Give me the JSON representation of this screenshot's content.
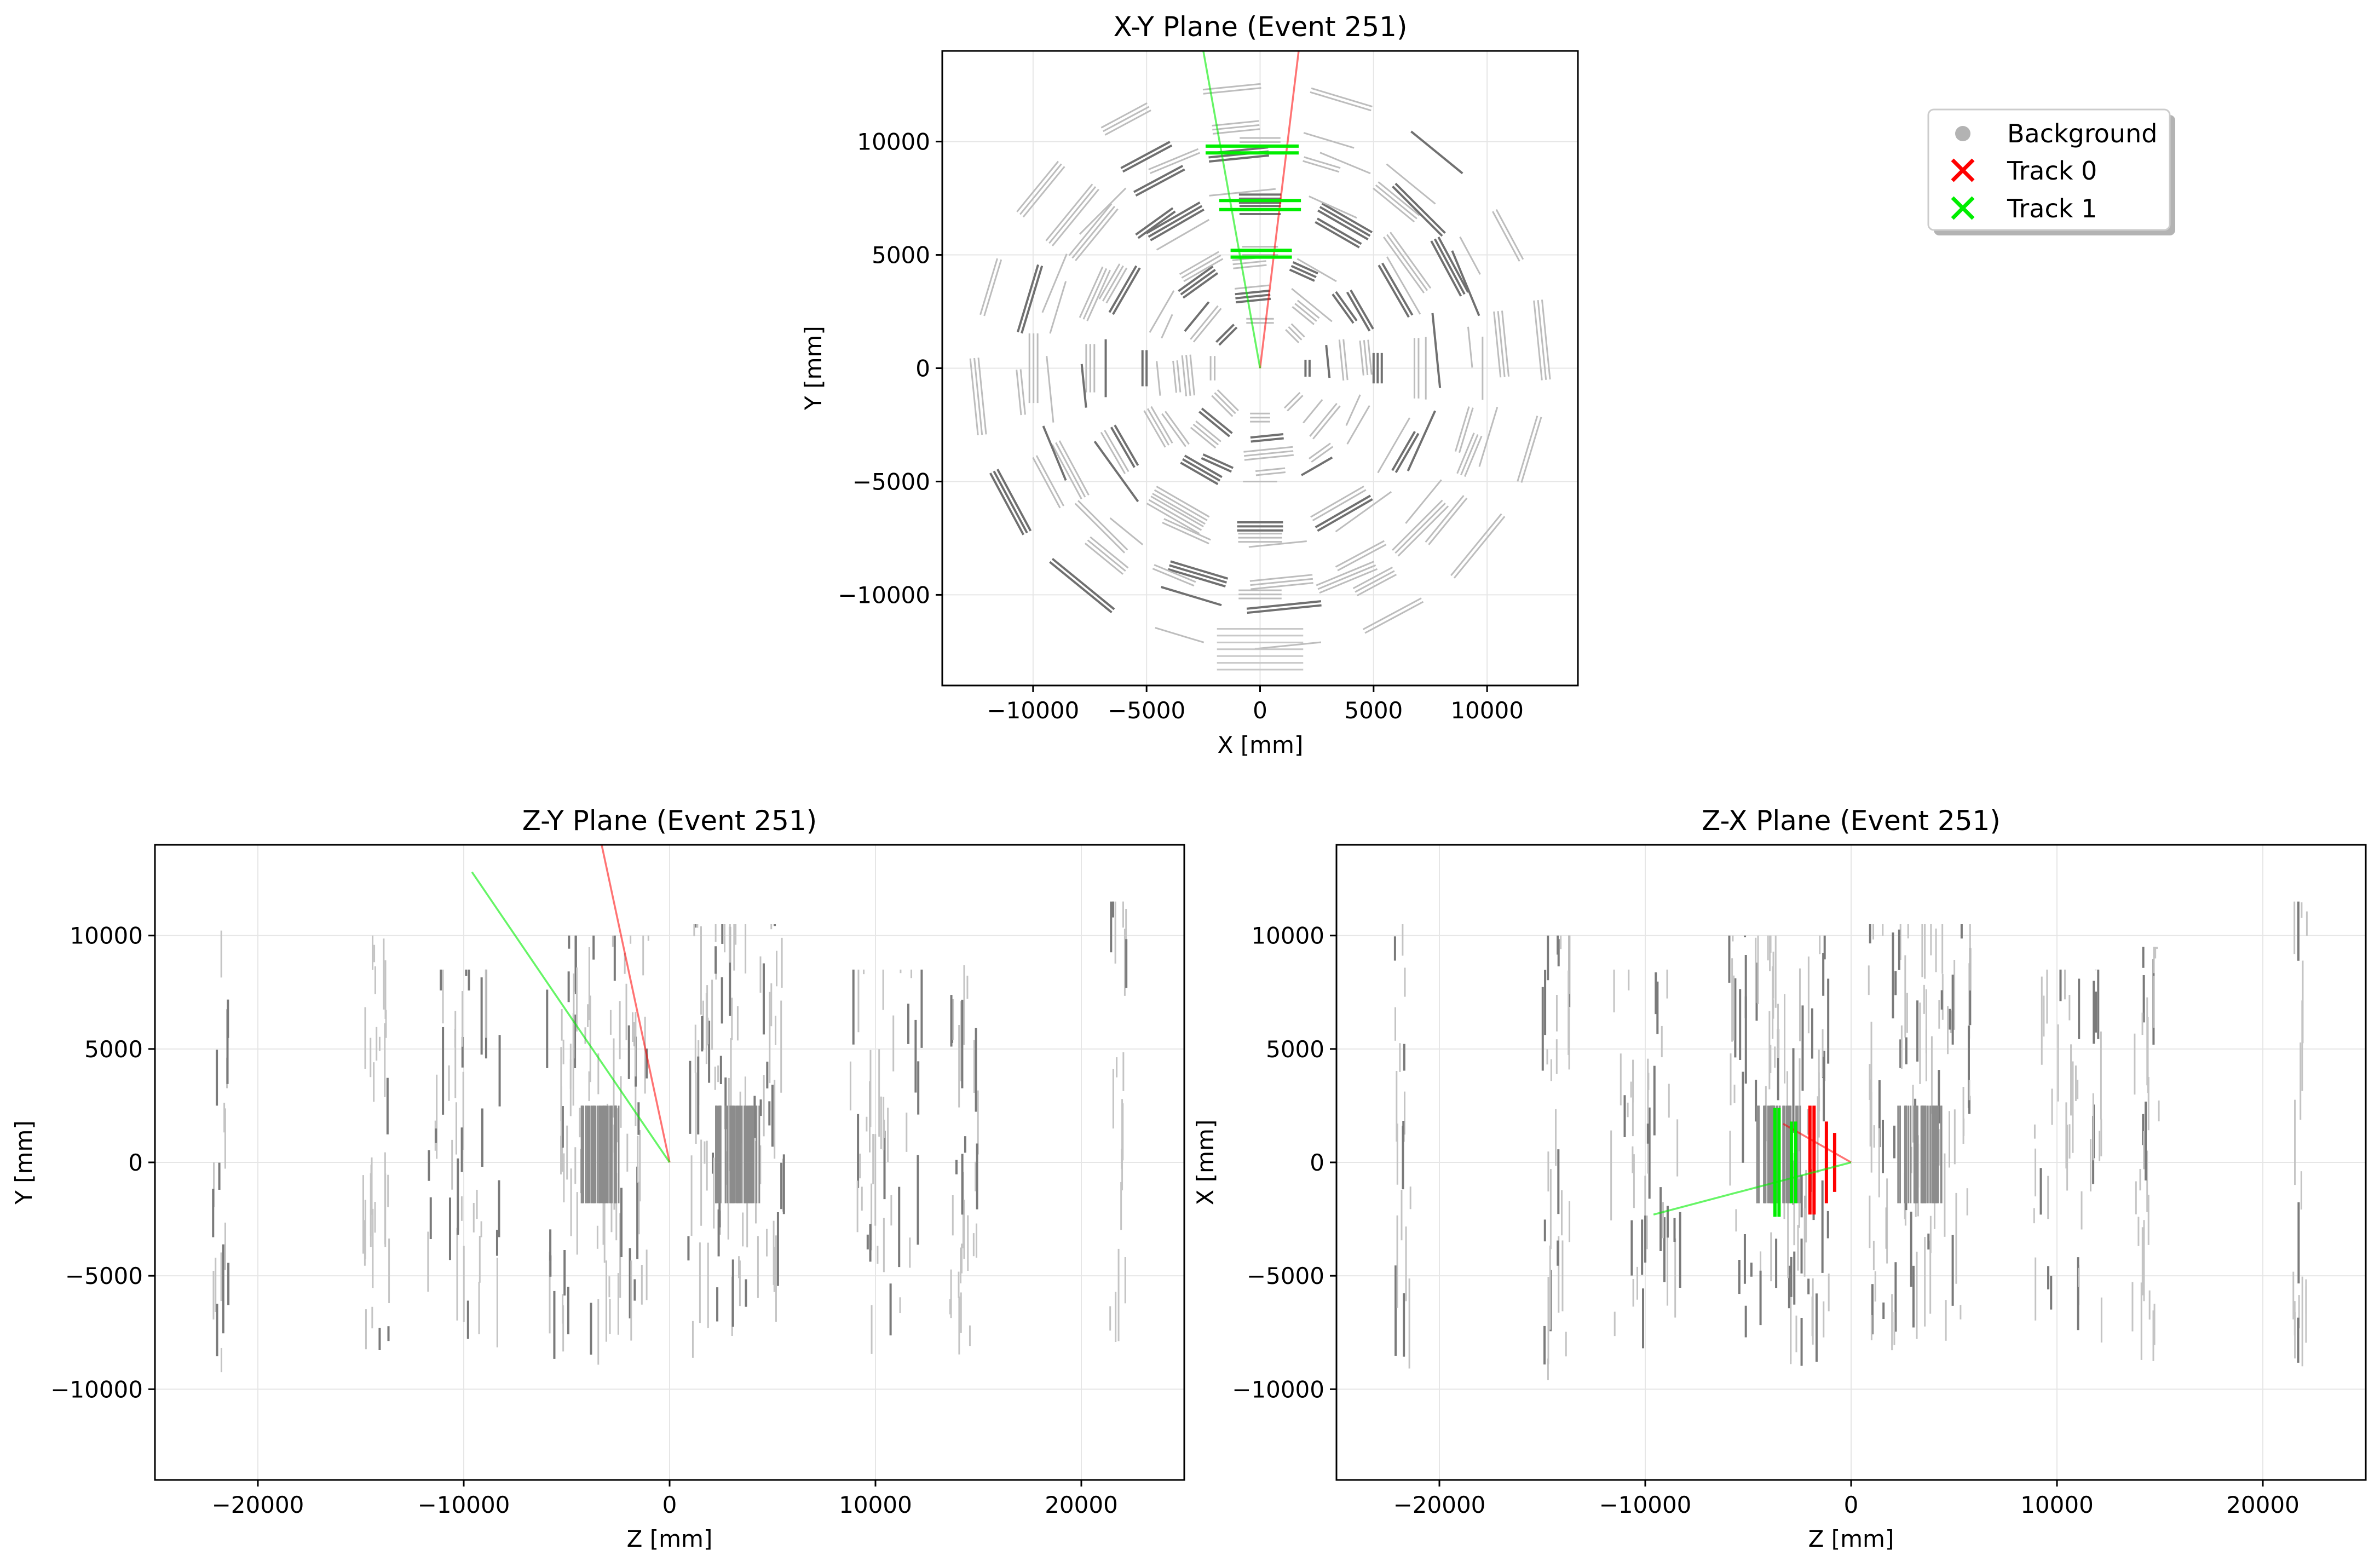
{
  "figure": {
    "panels": [
      {
        "id": "xy",
        "title": "X-Y Plane (Event 251)",
        "xlabel": "X [mm]",
        "ylabel": "Y [mm]",
        "xlim": [
          -14000,
          14000
        ],
        "ylim": [
          -14000,
          14000
        ],
        "xticks": [
          -10000,
          -5000,
          0,
          5000,
          10000
        ],
        "yticks": [
          -10000,
          -5000,
          0,
          5000,
          10000
        ],
        "grid": true
      },
      {
        "id": "zy",
        "title": "Z-Y Plane (Event 251)",
        "xlabel": "Z [mm]",
        "ylabel": "Y [mm]",
        "xlim": [
          -25000,
          25000
        ],
        "ylim": [
          -14000,
          14000
        ],
        "xticks": [
          -20000,
          -10000,
          0,
          10000,
          20000
        ],
        "yticks": [
          -10000,
          -5000,
          0,
          5000,
          10000
        ],
        "grid": true
      },
      {
        "id": "zx",
        "title": "Z-X Plane (Event 251)",
        "xlabel": "Z [mm]",
        "ylabel": "X [mm]",
        "xlim": [
          -25000,
          25000
        ],
        "ylim": [
          -14000,
          14000
        ],
        "xticks": [
          -20000,
          -10000,
          0,
          10000,
          20000
        ],
        "yticks": [
          -10000,
          -5000,
          0,
          5000,
          10000
        ],
        "grid": true
      }
    ],
    "legend": {
      "placement": "top-right",
      "entries": [
        {
          "label": "Background",
          "marker": "circle",
          "color": "#b3b3b3"
        },
        {
          "label": "Track 0",
          "marker": "x",
          "color": "#ff0000"
        },
        {
          "label": "Track 1",
          "marker": "x",
          "color": "#00ee00"
        }
      ]
    },
    "colors": {
      "background_hits": "#808080",
      "track0": "#ff0000",
      "track1": "#00ee00",
      "grid": "#e6e6e6"
    }
  },
  "chart_data": [
    {
      "type": "scatter",
      "title": "X-Y Plane (Event 251)",
      "xlabel": "X [mm]",
      "ylabel": "Y [mm]",
      "xlim": [
        -14000,
        14000
      ],
      "ylim": [
        -14000,
        14000
      ],
      "series": [
        {
          "name": "Background",
          "kind": "hit-segments",
          "description_values": {
            "geometry": "octagonal/polygonal detector chamber layers",
            "approx_layer_radii_mm": [
              2000,
              3000,
              4500,
              5000,
              7000,
              7500,
              9500,
              10500,
              12500
            ]
          }
        },
        {
          "name": "Track 0",
          "line": {
            "x": [
              0,
              1700
            ],
            "y": [
              0,
              14000
            ]
          },
          "hits": []
        },
        {
          "name": "Track 1",
          "line": {
            "x": [
              0,
              -2500
            ],
            "y": [
              0,
              14000
            ]
          },
          "hits": [
            {
              "x": [
                -2400,
                1700
              ],
              "y": 9800
            },
            {
              "x": [
                -2400,
                1700
              ],
              "y": 9500
            },
            {
              "x": [
                -1800,
                1800
              ],
              "y": 7400
            },
            {
              "x": [
                -1800,
                1800
              ],
              "y": 7000
            },
            {
              "x": [
                -1300,
                1400
              ],
              "y": 5200
            },
            {
              "x": [
                -1300,
                1400
              ],
              "y": 4900
            }
          ]
        }
      ]
    },
    {
      "type": "scatter",
      "title": "Z-Y Plane (Event 251)",
      "xlabel": "Z [mm]",
      "ylabel": "Y [mm]",
      "xlim": [
        -25000,
        25000
      ],
      "ylim": [
        -14000,
        14000
      ],
      "series": [
        {
          "name": "Background",
          "kind": "hit-segments"
        },
        {
          "name": "Track 0",
          "line": {
            "x": [
              0,
              -3300
            ],
            "y": [
              0,
              14000
            ]
          },
          "hits": []
        },
        {
          "name": "Track 1",
          "line": {
            "x": [
              0,
              -9600
            ],
            "y": [
              0,
              12800
            ]
          },
          "hits": []
        }
      ]
    },
    {
      "type": "scatter",
      "title": "Z-X Plane (Event 251)",
      "xlabel": "Z [mm]",
      "ylabel": "X [mm]",
      "xlim": [
        -25000,
        25000
      ],
      "ylim": [
        -14000,
        14000
      ],
      "series": [
        {
          "name": "Background",
          "kind": "hit-segments"
        },
        {
          "name": "Track 0",
          "line": {
            "x": [
              0,
              -3300
            ],
            "y": [
              0,
              1700
            ]
          },
          "hits": [
            {
              "z": -2000,
              "x": [
                -2300,
                2500
              ]
            },
            {
              "z": -1800,
              "x": [
                -2300,
                2500
              ]
            },
            {
              "z": -1200,
              "x": [
                -1800,
                1800
              ]
            },
            {
              "z": -800,
              "x": [
                -1300,
                1300
              ]
            }
          ]
        },
        {
          "name": "Track 1",
          "line": {
            "x": [
              0,
              -9600
            ],
            "y": [
              0,
              -2300
            ]
          },
          "hits": [
            {
              "z": -3700,
              "x": [
                -2400,
                2400
              ]
            },
            {
              "z": -3500,
              "x": [
                -2400,
                2400
              ]
            },
            {
              "z": -2900,
              "x": [
                -1800,
                1800
              ]
            },
            {
              "z": -2700,
              "x": [
                -1800,
                1800
              ]
            }
          ]
        }
      ]
    }
  ]
}
